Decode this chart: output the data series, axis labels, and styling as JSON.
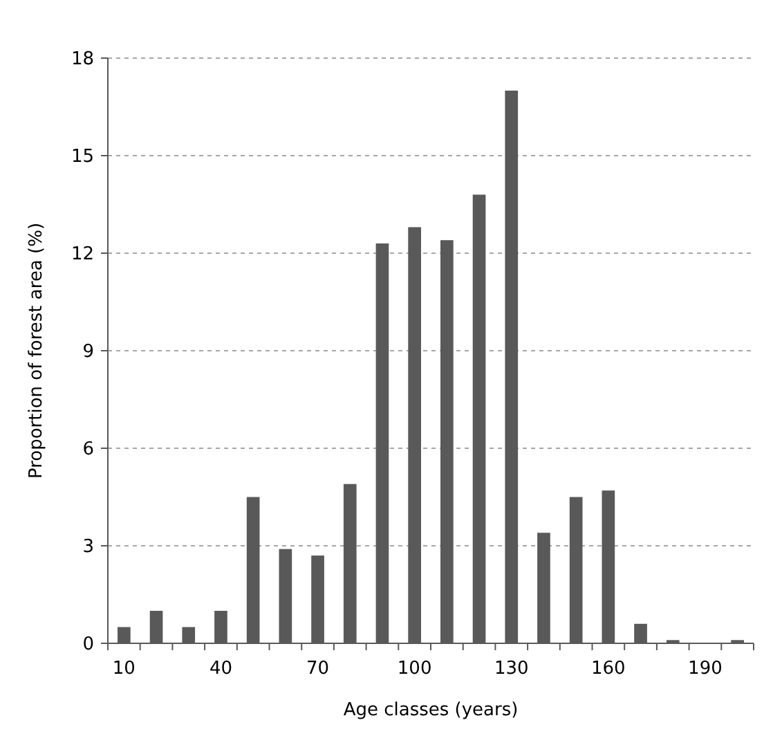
{
  "chart_data": {
    "type": "bar",
    "xlabel": "Age classes (years)",
    "ylabel": "Proportion of forest area (%)",
    "categories": [
      "10",
      null,
      null,
      "40",
      null,
      null,
      "70",
      null,
      null,
      "100",
      null,
      null,
      "130",
      null,
      null,
      "160",
      null,
      null,
      "190",
      null
    ],
    "values": [
      0.5,
      1.0,
      0.5,
      1.0,
      4.5,
      2.9,
      2.7,
      4.9,
      12.3,
      12.8,
      12.4,
      13.8,
      17.0,
      3.4,
      4.5,
      4.7,
      0.6,
      0.1,
      0,
      0.1
    ],
    "color": "#595959",
    "ylim": [
      0,
      18
    ],
    "yticks": [
      0,
      3,
      6,
      9,
      12,
      15,
      18
    ],
    "grid": "y"
  }
}
